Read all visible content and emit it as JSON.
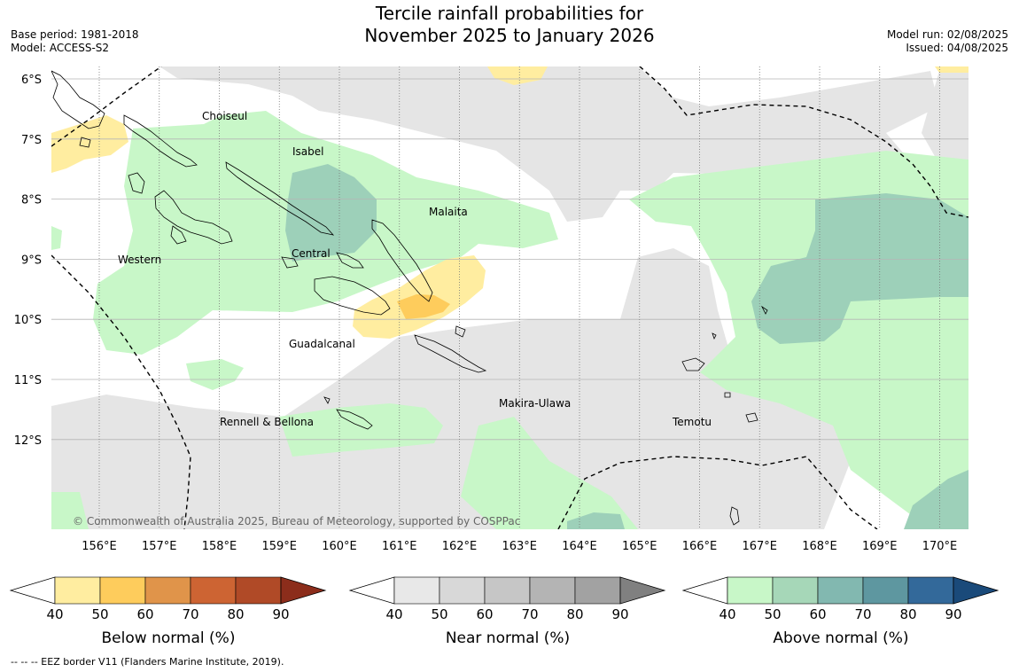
{
  "title": {
    "line1": "Tercile rainfall probabilities for",
    "line2": "November 2025 to January 2026"
  },
  "meta": {
    "base_period": "Base period: 1981-2018",
    "model": "Model: ACCESS-S2",
    "model_run": "Model run: 02/08/2025",
    "issued": "Issued: 04/08/2025"
  },
  "map": {
    "lat_labels": [
      "6°S",
      "7°S",
      "8°S",
      "9°S",
      "10°S",
      "11°S",
      "12°S"
    ],
    "lon_labels": [
      "156°E",
      "157°E",
      "158°E",
      "159°E",
      "160°E",
      "161°E",
      "162°E",
      "163°E",
      "164°E",
      "165°E",
      "166°E",
      "167°E",
      "168°E",
      "169°E",
      "170°E"
    ],
    "regions": {
      "choiseul": "Choiseul",
      "isabel": "Isabel",
      "malaita": "Malaita",
      "western": "Western",
      "central": "Central",
      "guadalcanal": "Guadalcanal",
      "makira": "Makira-Ulawa",
      "rennell": "Rennell & Bellona",
      "temotu": "Temotu"
    },
    "copyright": "© Commonwealth of Australia 2025, Bureau of Meteorology, supported by COSPPac"
  },
  "colorbars": {
    "below": {
      "label": "Below normal (%)",
      "ticks": [
        "40",
        "50",
        "60",
        "70",
        "80",
        "90"
      ],
      "colors": [
        "#ffeda0",
        "#fecc5c",
        "#e0944a",
        "#cd6433",
        "#b04a27",
        "#8c2d1b"
      ]
    },
    "near": {
      "label": "Near normal (%)",
      "ticks": [
        "40",
        "50",
        "60",
        "70",
        "80",
        "90"
      ],
      "colors": [
        "#e8e8e8",
        "#d8d8d8",
        "#c6c6c6",
        "#b4b4b4",
        "#a2a2a2",
        "#808080"
      ]
    },
    "above": {
      "label": "Above normal (%)",
      "ticks": [
        "40",
        "50",
        "60",
        "70",
        "80",
        "90"
      ],
      "colors": [
        "#c8f7c8",
        "#a6d7b8",
        "#82b8b0",
        "#5e97a0",
        "#33699a",
        "#1a4a7a"
      ]
    }
  },
  "footnote": "--  --  -- EEZ border V11 (Flanders Marine Institute, 2019)."
}
